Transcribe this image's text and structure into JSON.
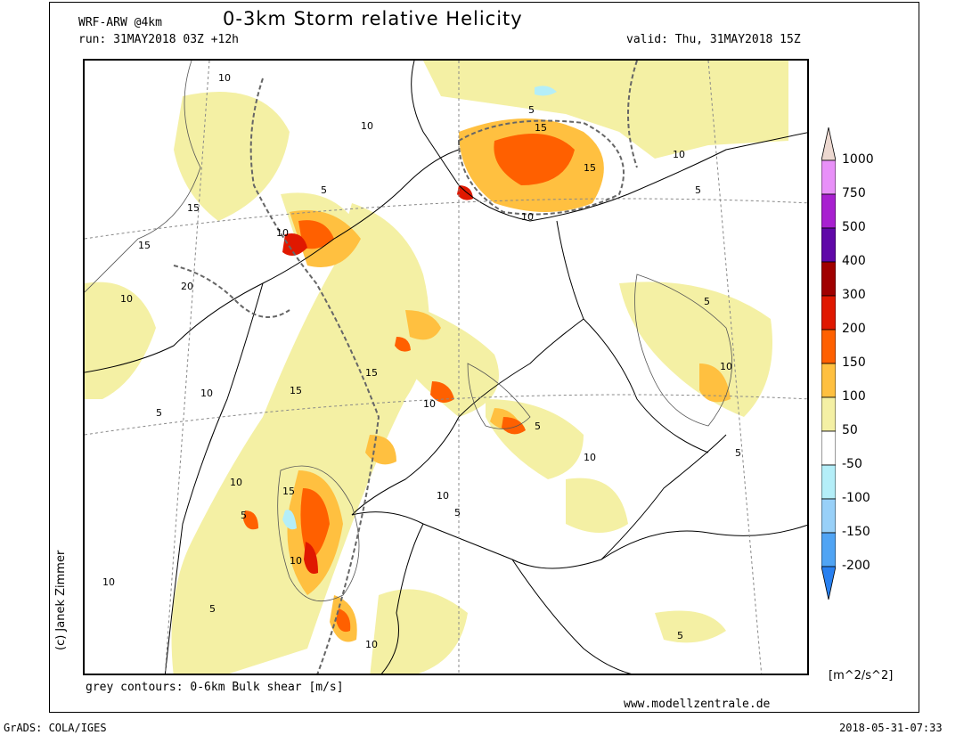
{
  "header": {
    "model": "WRF-ARW @4km",
    "title": "0-3km Storm relative Helicity",
    "run": "run: 31MAY2018 03Z +12h",
    "valid": "valid: Thu, 31MAY2018 15Z"
  },
  "credit": "(c) Janek Zimmer",
  "footer": {
    "contours_note": "grey contours: 0-6km Bulk shear [m/s]",
    "website": "www.modellzentrale.de",
    "grads": "GrADS: COLA/IGES",
    "timestamp": "2018-05-31-07:33"
  },
  "colorbar": {
    "units": "[m^2/s^2]",
    "labels": [
      "1000",
      "750",
      "500",
      "400",
      "300",
      "200",
      "150",
      "100",
      "50",
      "-50",
      "-100",
      "-150",
      "-200"
    ],
    "colors": {
      "top_arrow": "#ecd8d0",
      "750_1000": "#e890f8",
      "500_750": "#a820d0",
      "400_500": "#6008a8",
      "300_400": "#a00000",
      "200_300": "#e01800",
      "150_200": "#ff6000",
      "100_150": "#ffc040",
      "50_100": "#f4f0a4",
      "-50_50": "#ffffff",
      "-100_-50": "#b4eef8",
      "-150_-100": "#98d0f8",
      "-200_-150": "#50a4f4",
      "bottom_arrow": "#2880f0"
    }
  },
  "contour_labels": [
    "10",
    "10",
    "5",
    "15",
    "10",
    "5",
    "15",
    "10",
    "20",
    "15",
    "10",
    "5",
    "10",
    "15",
    "10",
    "5",
    "10",
    "15",
    "5",
    "10",
    "5",
    "10",
    "15",
    "15",
    "10",
    "5",
    "10",
    "5",
    "5",
    "10",
    "5",
    "10",
    "10",
    "5"
  ]
}
